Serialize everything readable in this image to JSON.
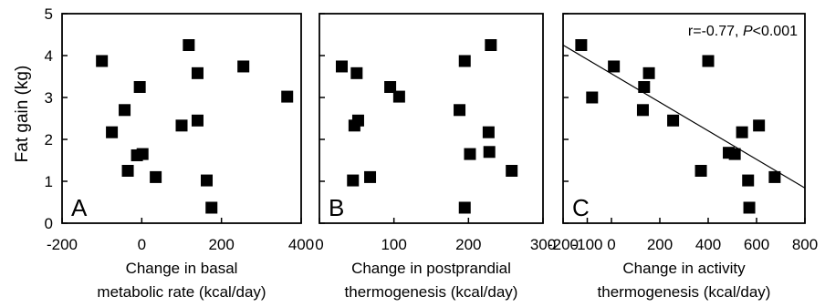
{
  "y_axis": {
    "label": "Fat gain (kg)",
    "ticks": [
      "0",
      "1",
      "2",
      "3",
      "4",
      "5"
    ]
  },
  "chart_data": [
    {
      "type": "scatter",
      "panel": "A",
      "xlabel_lines": [
        "Change in basal",
        "metabolic rate (kcal/day)"
      ],
      "xlim": [
        -200,
        400
      ],
      "ylim": [
        0,
        5
      ],
      "x_ticks": [
        "-200",
        "0",
        "200",
        "400"
      ],
      "points": [
        {
          "x": -100,
          "y": 3.87
        },
        {
          "x": 118,
          "y": 4.25
        },
        {
          "x": 255,
          "y": 3.74
        },
        {
          "x": 365,
          "y": 3.02
        },
        {
          "x": 140,
          "y": 3.58
        },
        {
          "x": -5,
          "y": 3.25
        },
        {
          "x": -43,
          "y": 2.7
        },
        {
          "x": 140,
          "y": 2.45
        },
        {
          "x": 100,
          "y": 2.33
        },
        {
          "x": -75,
          "y": 2.17
        },
        {
          "x": 2,
          "y": 1.65
        },
        {
          "x": -12,
          "y": 1.62
        },
        {
          "x": -35,
          "y": 1.25
        },
        {
          "x": 35,
          "y": 1.1
        },
        {
          "x": 163,
          "y": 1.02
        },
        {
          "x": 175,
          "y": 0.37
        }
      ],
      "grid": false,
      "legend": "none"
    },
    {
      "type": "scatter",
      "panel": "B",
      "xlabel_lines": [
        "Change in postprandial",
        "thermogenesis (kcal/day)"
      ],
      "xlim": [
        0,
        300
      ],
      "ylim": [
        0,
        5
      ],
      "x_ticks": [
        "0",
        "100",
        "200",
        "300"
      ],
      "points": [
        {
          "x": 30,
          "y": 3.74
        },
        {
          "x": 50,
          "y": 3.58
        },
        {
          "x": 95,
          "y": 3.25
        },
        {
          "x": 107,
          "y": 3.02
        },
        {
          "x": 52,
          "y": 2.45
        },
        {
          "x": 47,
          "y": 2.33
        },
        {
          "x": 68,
          "y": 1.1
        },
        {
          "x": 45,
          "y": 1.02
        },
        {
          "x": 230,
          "y": 4.25
        },
        {
          "x": 195,
          "y": 3.87
        },
        {
          "x": 188,
          "y": 2.7
        },
        {
          "x": 227,
          "y": 2.17
        },
        {
          "x": 202,
          "y": 1.65
        },
        {
          "x": 228,
          "y": 1.7
        },
        {
          "x": 258,
          "y": 1.25
        },
        {
          "x": 195,
          "y": 0.37
        }
      ],
      "grid": false,
      "legend": "none"
    },
    {
      "type": "scatter",
      "panel": "C",
      "xlabel_lines": [
        "Change in activity",
        "thermogenesis (kcal/day)"
      ],
      "xlim": [
        -200,
        800
      ],
      "ylim": [
        0,
        5
      ],
      "x_ticks": [
        "-200",
        "-100",
        "0",
        "200",
        "400",
        "600",
        "800"
      ],
      "annotation": {
        "prefix": "r=-0.77, ",
        "p_symbol": "P",
        "suffix": "<0.001"
      },
      "fit_line": {
        "x": [
          -200,
          800
        ],
        "y": [
          4.25,
          0.84
        ]
      },
      "points": [
        {
          "x": -125,
          "y": 4.25
        },
        {
          "x": -80,
          "y": 3.0
        },
        {
          "x": 10,
          "y": 3.74
        },
        {
          "x": 155,
          "y": 3.58
        },
        {
          "x": 135,
          "y": 3.25
        },
        {
          "x": 400,
          "y": 3.87
        },
        {
          "x": 130,
          "y": 2.7
        },
        {
          "x": 255,
          "y": 2.45
        },
        {
          "x": 610,
          "y": 2.33
        },
        {
          "x": 540,
          "y": 2.17
        },
        {
          "x": 485,
          "y": 1.68
        },
        {
          "x": 510,
          "y": 1.65
        },
        {
          "x": 370,
          "y": 1.25
        },
        {
          "x": 675,
          "y": 1.1
        },
        {
          "x": 565,
          "y": 1.02
        },
        {
          "x": 570,
          "y": 0.37
        }
      ],
      "grid": false,
      "legend": "none"
    }
  ]
}
